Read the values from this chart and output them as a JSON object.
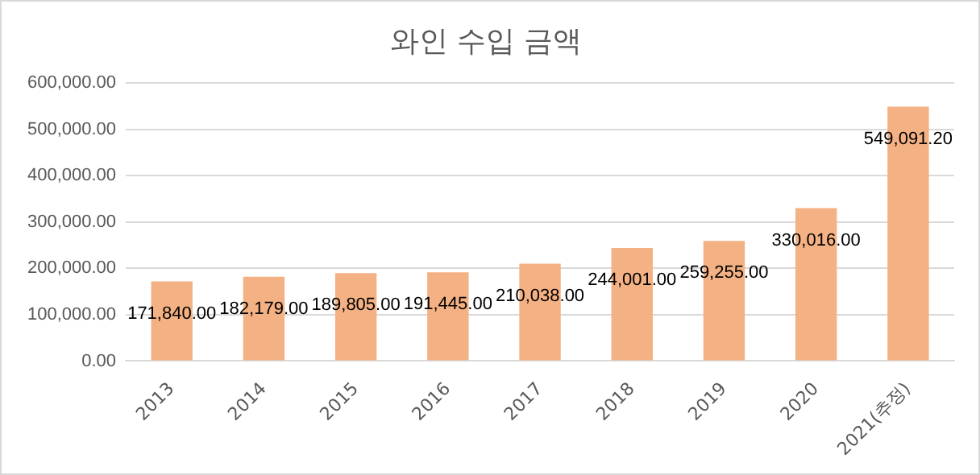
{
  "chart_data": {
    "type": "bar",
    "title": "와인 수입 금액",
    "categories": [
      "2013",
      "2014",
      "2015",
      "2016",
      "2017",
      "2018",
      "2019",
      "2020",
      "2021(추정)"
    ],
    "values": [
      171840,
      182179,
      189805,
      191445,
      210038,
      244001,
      259255,
      330016,
      549091.2
    ],
    "color": "#f4b183",
    "ylim": [
      0,
      600000
    ],
    "yticks": [
      {
        "value": 0,
        "label": "0.00"
      },
      {
        "value": 100000,
        "label": "100,000.00"
      },
      {
        "value": 200000,
        "label": "200,000.00"
      },
      {
        "value": 300000,
        "label": "300,000.00"
      },
      {
        "value": 400000,
        "label": "400,000.00"
      },
      {
        "value": 500000,
        "label": "500,000.00"
      },
      {
        "value": 600000,
        "label": "600,000.00"
      }
    ],
    "value_labels": [
      "171,840.00",
      "182,179.00",
      "189,805.00",
      "191,445.00",
      "210,038.00",
      "244,001.00",
      "259,255.00",
      "330,016.00",
      "549,091.20"
    ],
    "grid": "y",
    "legend": false
  }
}
